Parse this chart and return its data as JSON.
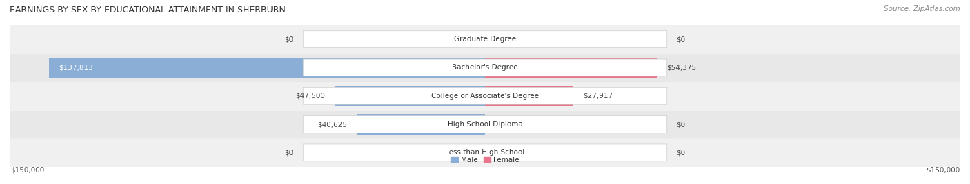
{
  "title": "EARNINGS BY SEX BY EDUCATIONAL ATTAINMENT IN SHERBURN",
  "source": "Source: ZipAtlas.com",
  "categories": [
    "Less than High School",
    "High School Diploma",
    "College or Associate's Degree",
    "Bachelor's Degree",
    "Graduate Degree"
  ],
  "male_values": [
    0,
    40625,
    47500,
    137813,
    0
  ],
  "female_values": [
    0,
    0,
    27917,
    54375,
    0
  ],
  "male_labels": [
    "$0",
    "$40,625",
    "$47,500",
    "$137,813",
    "$0"
  ],
  "female_labels": [
    "$0",
    "$0",
    "$27,917",
    "$54,375",
    "$0"
  ],
  "male_color": "#8aaed6",
  "female_color": "#e8758a",
  "male_label_color": "#4a4a4a",
  "female_label_color": "#4a4a4a",
  "bar_bg_color": "#e8e8e8",
  "row_bg_colors": [
    "#f0f0f0",
    "#e8e8e8",
    "#f0f0f0",
    "#e8e8e8",
    "#f0f0f0"
  ],
  "max_value": 150000,
  "x_tick_labels": [
    "$150,000",
    "$150,000"
  ],
  "title_fontsize": 9,
  "source_fontsize": 7.5,
  "label_fontsize": 7.5,
  "cat_fontsize": 7.5,
  "legend_male": "Male",
  "legend_female": "Female",
  "background_color": "#ffffff",
  "center_box_color": "#ffffff",
  "center_box_edge_color": "#cccccc"
}
